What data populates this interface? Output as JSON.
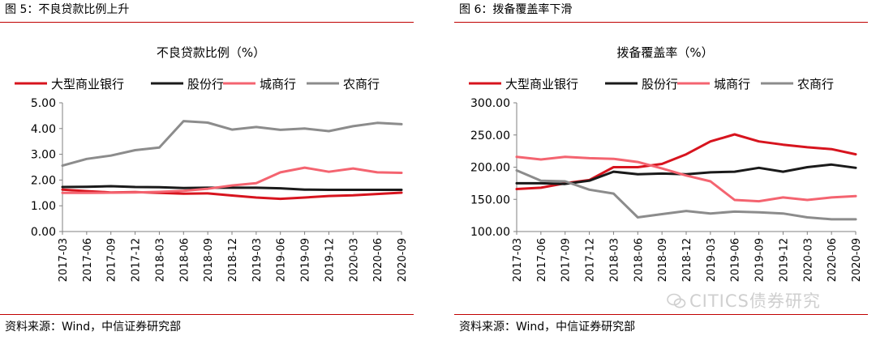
{
  "figures": [
    {
      "figure_label": "图 5：不良贷款比例上升",
      "source": "资料来源：Wind，中信证券研究部",
      "chart_data": {
        "type": "line",
        "title": "不良贷款比例（%）",
        "categories": [
          "2017-03",
          "2017-06",
          "2017-09",
          "2017-12",
          "2018-03",
          "2018-06",
          "2018-09",
          "2018-12",
          "2019-03",
          "2019-06",
          "2019-09",
          "2019-12",
          "2020-03",
          "2020-06",
          "2020-09"
        ],
        "ylim": [
          0,
          5
        ],
        "yticks": [
          "0.00",
          "1.00",
          "2.00",
          "3.00",
          "4.00",
          "5.00"
        ],
        "grid": false,
        "legend_position": "top",
        "series": [
          {
            "name": "大型商业银行",
            "color": "#d7141e",
            "values": [
              1.63,
              1.57,
              1.52,
              1.53,
              1.5,
              1.47,
              1.48,
              1.4,
              1.32,
              1.27,
              1.32,
              1.38,
              1.41,
              1.46,
              1.51
            ]
          },
          {
            "name": "股份行",
            "color": "#1a1a1a",
            "values": [
              1.73,
              1.74,
              1.76,
              1.73,
              1.72,
              1.69,
              1.7,
              1.7,
              1.7,
              1.68,
              1.63,
              1.62,
              1.62,
              1.62,
              1.62
            ]
          },
          {
            "name": "城商行",
            "color": "#f46470",
            "values": [
              1.5,
              1.5,
              1.51,
              1.52,
              1.54,
              1.58,
              1.66,
              1.79,
              1.88,
              2.3,
              2.48,
              2.32,
              2.45,
              2.3,
              2.28
            ]
          },
          {
            "name": "农商行",
            "color": "#8c8c8c",
            "values": [
              2.56,
              2.82,
              2.95,
              3.16,
              3.26,
              4.29,
              4.23,
              3.96,
              4.06,
              3.95,
              4.0,
              3.9,
              4.09,
              4.22,
              4.17
            ]
          }
        ]
      }
    },
    {
      "figure_label": "图 6：拨备覆盖率下滑",
      "source": "资料来源：Wind，中信证券研究部",
      "chart_data": {
        "type": "line",
        "title": "拨备覆盖率（%）",
        "categories": [
          "2017-03",
          "2017-06",
          "2017-09",
          "2017-12",
          "2018-03",
          "2018-06",
          "2018-09",
          "2018-12",
          "2019-03",
          "2019-06",
          "2019-09",
          "2019-12",
          "2020-03",
          "2020-06",
          "2020-09"
        ],
        "ylim": [
          100,
          300
        ],
        "yticks": [
          "100.00",
          "150.00",
          "200.00",
          "250.00",
          "300.00"
        ],
        "grid": false,
        "legend_position": "top",
        "series": [
          {
            "name": "大型商业银行",
            "color": "#d7141e",
            "values": [
              166,
              168,
              175,
              180,
              200,
              200,
              205,
              220,
              240,
              251,
              240,
              235,
              231,
              228,
              220
            ]
          },
          {
            "name": "股份行",
            "color": "#1a1a1a",
            "values": [
              175,
              175,
              174,
              179,
              193,
              189,
              190,
              189,
              192,
              193,
              199,
              193,
              200,
              204,
              199
            ]
          },
          {
            "name": "城商行",
            "color": "#f46470",
            "values": [
              216,
              212,
              216,
              214,
              213,
              208,
              198,
              187,
              178,
              149,
              147,
              153,
              149,
              153,
              155
            ]
          },
          {
            "name": "农商行",
            "color": "#8c8c8c",
            "values": [
              195,
              179,
              178,
              165,
              159,
              122,
              127,
              132,
              128,
              131,
              130,
              128,
              122,
              119,
              119
            ]
          }
        ]
      }
    }
  ],
  "watermark": "CITICS债券研究"
}
